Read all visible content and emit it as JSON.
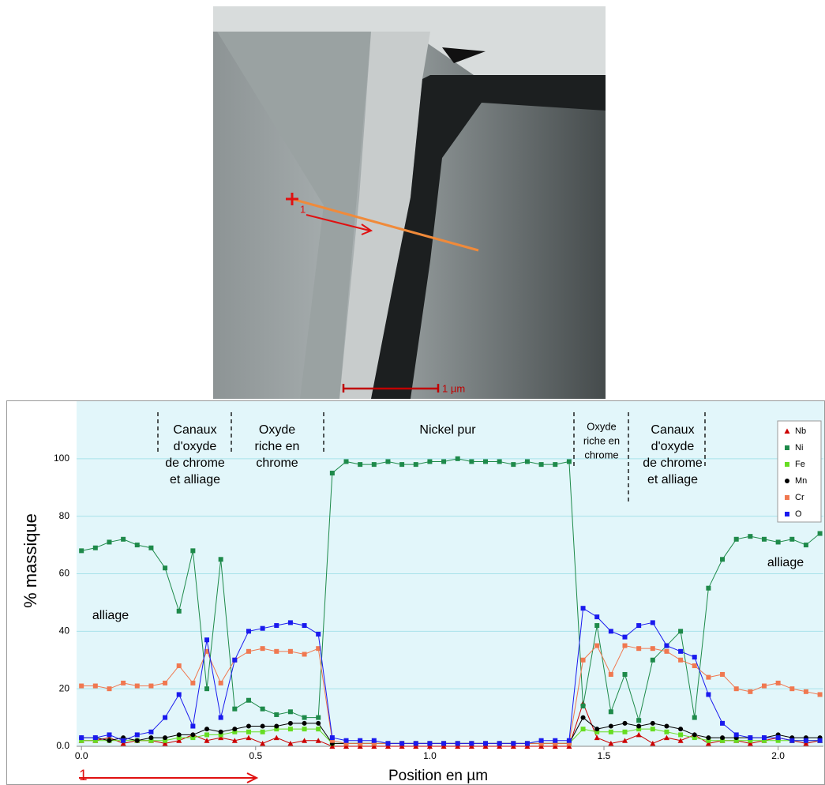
{
  "micrograph": {
    "scale_label": "1 µm",
    "line_label": "1"
  },
  "chart_data": {
    "type": "line",
    "x_label": "Position en µm",
    "y_label": "% massique",
    "start_label": "1",
    "xlim": [
      -0.014,
      2.13
    ],
    "ylim": [
      0,
      120
    ],
    "xticks": [
      {
        "value": 0,
        "label": "0.0"
      },
      0.5,
      {
        "value": 1,
        "label": "1.0"
      },
      1.5,
      {
        "value": 2,
        "label": "2.0"
      }
    ],
    "yticks": [
      {
        "value": 0,
        "label": "0.0"
      },
      20,
      40,
      60,
      80,
      100
    ],
    "grid": true,
    "legend": "upper right",
    "annotations": [
      {
        "lines": [
          "Canaux",
          "d'oxyde",
          "de chrome",
          "et alliage"
        ]
      },
      {
        "lines": [
          "Oxyde",
          "riche en",
          "chrome"
        ]
      },
      {
        "lines": [
          "Nickel pur"
        ]
      },
      {
        "lines": [
          "Oxyde",
          "riche en",
          "chrome"
        ]
      },
      {
        "lines": [
          "Canaux",
          "d'oxyde",
          "de chrome",
          "et alliage"
        ]
      },
      {
        "lines": [
          "alliage"
        ]
      },
      {
        "lines": [
          "alliage"
        ]
      }
    ],
    "x": [
      0,
      0.04,
      0.08,
      0.12,
      0.16,
      0.2,
      0.24,
      0.28,
      0.32,
      0.36,
      0.4,
      0.44,
      0.48,
      0.52,
      0.56,
      0.6,
      0.64,
      0.68,
      0.72,
      0.76,
      0.8,
      0.84,
      0.88,
      0.92,
      0.96,
      1.0,
      1.04,
      1.08,
      1.12,
      1.16,
      1.2,
      1.24,
      1.28,
      1.32,
      1.36,
      1.4,
      1.44,
      1.48,
      1.52,
      1.56,
      1.6,
      1.64,
      1.68,
      1.72,
      1.76,
      1.8,
      1.84,
      1.88,
      1.92,
      1.96,
      2.0,
      2.04,
      2.08,
      2.12
    ],
    "series": [
      {
        "name": "Nb",
        "color": "#cc0000",
        "marker": "triangle",
        "values": [
          2,
          2,
          3,
          1,
          2,
          2,
          1,
          2,
          4,
          2,
          3,
          2,
          3,
          1,
          3,
          1,
          2,
          2,
          0,
          0,
          0,
          0,
          0,
          0,
          0,
          0,
          0,
          0,
          0,
          0,
          0,
          0,
          0,
          0,
          0,
          0,
          15,
          3,
          1,
          2,
          4,
          1,
          3,
          2,
          4,
          1,
          2,
          2,
          1,
          2,
          3,
          2,
          1,
          2
        ]
      },
      {
        "name": "Ni",
        "color": "#1e8a4a",
        "marker": "square",
        "values": [
          68,
          69,
          71,
          72,
          70,
          69,
          62,
          47,
          68,
          20,
          65,
          13,
          16,
          13,
          11,
          12,
          10,
          10,
          95,
          99,
          98,
          98,
          99,
          98,
          98,
          99,
          99,
          100,
          99,
          99,
          99,
          98,
          99,
          98,
          98,
          99,
          14,
          42,
          12,
          25,
          9,
          30,
          35,
          40,
          10,
          55,
          65,
          72,
          73,
          72,
          71,
          72,
          70,
          74
        ]
      },
      {
        "name": "Fe",
        "color": "#66dd22",
        "marker": "square",
        "values": [
          2,
          2,
          2,
          2,
          2,
          2,
          2,
          3,
          3,
          4,
          4,
          5,
          5,
          5,
          6,
          6,
          6,
          6,
          1,
          1,
          1,
          1,
          1,
          1,
          1,
          1,
          1,
          1,
          1,
          1,
          1,
          1,
          1,
          1,
          1,
          1,
          6,
          5,
          5,
          5,
          6,
          6,
          5,
          4,
          3,
          2,
          2,
          2,
          2,
          2,
          2,
          2,
          2,
          2
        ]
      },
      {
        "name": "Mn",
        "color": "#000000",
        "marker": "circle",
        "values": [
          3,
          3,
          2,
          3,
          2,
          3,
          3,
          4,
          4,
          6,
          5,
          6,
          7,
          7,
          7,
          8,
          8,
          8,
          1,
          1,
          1,
          1,
          1,
          1,
          1,
          1,
          1,
          1,
          1,
          1,
          1,
          1,
          1,
          1,
          1,
          1,
          10,
          6,
          7,
          8,
          7,
          8,
          7,
          6,
          4,
          3,
          3,
          3,
          3,
          3,
          4,
          3,
          3,
          3
        ]
      },
      {
        "name": "Cr",
        "color": "#f07850",
        "marker": "square",
        "values": [
          21,
          21,
          20,
          22,
          21,
          21,
          22,
          28,
          22,
          33,
          22,
          30,
          33,
          34,
          33,
          33,
          32,
          34,
          2,
          1,
          1,
          1,
          1,
          1,
          1,
          1,
          1,
          1,
          1,
          1,
          1,
          1,
          1,
          1,
          1,
          1,
          30,
          35,
          25,
          35,
          34,
          34,
          33,
          30,
          28,
          24,
          25,
          20,
          19,
          21,
          22,
          20,
          19,
          18
        ]
      },
      {
        "name": "O",
        "color": "#1a1aee",
        "marker": "square",
        "values": [
          3,
          3,
          4,
          2,
          4,
          5,
          10,
          18,
          7,
          37,
          10,
          30,
          40,
          41,
          42,
          43,
          42,
          39,
          3,
          2,
          2,
          2,
          1,
          1,
          1,
          1,
          1,
          1,
          1,
          1,
          1,
          1,
          1,
          2,
          2,
          2,
          48,
          45,
          40,
          38,
          42,
          43,
          35,
          33,
          31,
          18,
          8,
          4,
          3,
          3,
          3,
          2,
          2,
          2
        ]
      }
    ]
  }
}
